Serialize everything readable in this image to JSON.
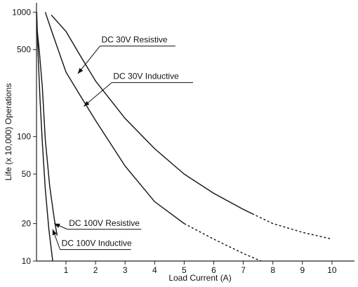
{
  "chart_data": {
    "type": "line",
    "xlabel": "Load Current (A)",
    "ylabel": "Life (x 10,000) Operations",
    "xlim": [
      0,
      10.4
    ],
    "ylim": [
      10,
      1100
    ],
    "yscale": "log",
    "xticks": [
      1,
      2,
      3,
      4,
      5,
      6,
      7,
      8,
      9,
      10
    ],
    "xtick_labels": [
      "1",
      "2",
      "3",
      "4",
      "5",
      "6",
      "7",
      "8",
      "9",
      "10"
    ],
    "yticks": [
      10,
      20,
      50,
      100,
      500,
      1000
    ],
    "ytick_labels": [
      "10",
      "20",
      "50",
      "100",
      "500",
      "1000"
    ],
    "grid": false,
    "series": [
      {
        "name": "DC 30V Resistive",
        "points": [
          [
            0.5,
            950
          ],
          [
            1,
            700
          ],
          [
            1.5,
            440
          ],
          [
            2,
            280
          ],
          [
            3,
            140
          ],
          [
            4,
            80
          ],
          [
            5,
            50
          ],
          [
            6,
            35
          ],
          [
            7,
            26
          ],
          [
            8,
            20
          ],
          [
            9,
            17
          ],
          [
            10,
            15
          ]
        ],
        "dashed_from": 7.3
      },
      {
        "name": "DC 30V Inductive",
        "points": [
          [
            0.3,
            1000
          ],
          [
            0.5,
            720
          ],
          [
            1,
            330
          ],
          [
            1.5,
            210
          ],
          [
            2,
            135
          ],
          [
            3,
            58
          ],
          [
            4,
            30
          ],
          [
            5,
            20
          ],
          [
            6,
            15
          ],
          [
            7,
            11.5
          ],
          [
            7.6,
            10
          ]
        ],
        "dashed_from": 5
      },
      {
        "name": "DC 100V Resistive",
        "points": [
          [
            0.03,
            700
          ],
          [
            0.1,
            480
          ],
          [
            0.2,
            250
          ],
          [
            0.3,
            95
          ],
          [
            0.45,
            40
          ],
          [
            0.6,
            22
          ],
          [
            0.7,
            16
          ]
        ],
        "dashed_from": null
      },
      {
        "name": "DC 100V Inductive",
        "points": [
          [
            0.01,
            1000
          ],
          [
            0.05,
            500
          ],
          [
            0.12,
            200
          ],
          [
            0.2,
            90
          ],
          [
            0.3,
            38
          ],
          [
            0.42,
            18
          ],
          [
            0.55,
            10
          ]
        ],
        "dashed_from": null
      }
    ]
  }
}
